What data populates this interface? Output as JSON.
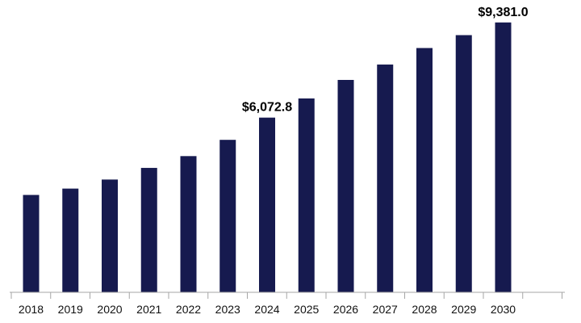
{
  "chart_data": {
    "type": "bar",
    "title": "",
    "xlabel": "",
    "ylabel": "",
    "categories": [
      "2018",
      "2019",
      "2020",
      "2021",
      "2022",
      "2023",
      "2024",
      "2025",
      "2026",
      "2027",
      "2028",
      "2029",
      "2030"
    ],
    "series": [
      {
        "values": [
          3385,
          3605,
          3920,
          4325,
          4735,
          5300,
          6072.8,
          6740,
          7383,
          7919,
          8492,
          8940,
          9381.0
        ]
      }
    ],
    "data_labels": [
      {
        "category": "2024",
        "text": "$6,072.8"
      },
      {
        "category": "2030",
        "text": "$9,381.0"
      }
    ],
    "ylim": [
      0,
      9600
    ],
    "grid": false,
    "legend": "none",
    "colors": {
      "bar": "#161a4f",
      "axis": "#a6a6a6",
      "text": "#111111"
    }
  }
}
